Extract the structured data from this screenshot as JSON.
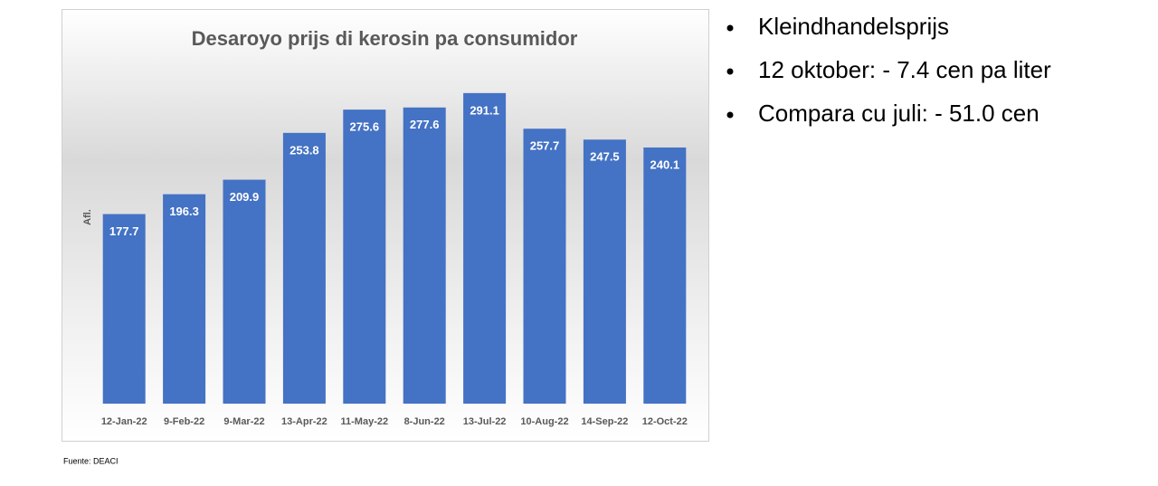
{
  "chart_data": {
    "type": "bar",
    "title": "Desaroyo prijs di kerosin pa consumidor",
    "y_label": "Afl.",
    "categories": [
      "12-Jan-22",
      "9-Feb-22",
      "9-Mar-22",
      "13-Apr-22",
      "11-May-22",
      "8-Jun-22",
      "13-Jul-22",
      "10-Aug-22",
      "14-Sep-22",
      "12-Oct-22"
    ],
    "values": [
      177.7,
      196.3,
      209.9,
      253.8,
      275.6,
      277.6,
      291.1,
      257.7,
      247.5,
      240.1
    ],
    "color": "#4472c4",
    "ylim": [
      0,
      330
    ],
    "grid": false
  },
  "bullets": [
    "Kleindhandelsprijs",
    "12 oktober: - 7.4 cen pa liter",
    "Compara cu juli: - 51.0 cen"
  ],
  "source": "Fuente: DEACI"
}
